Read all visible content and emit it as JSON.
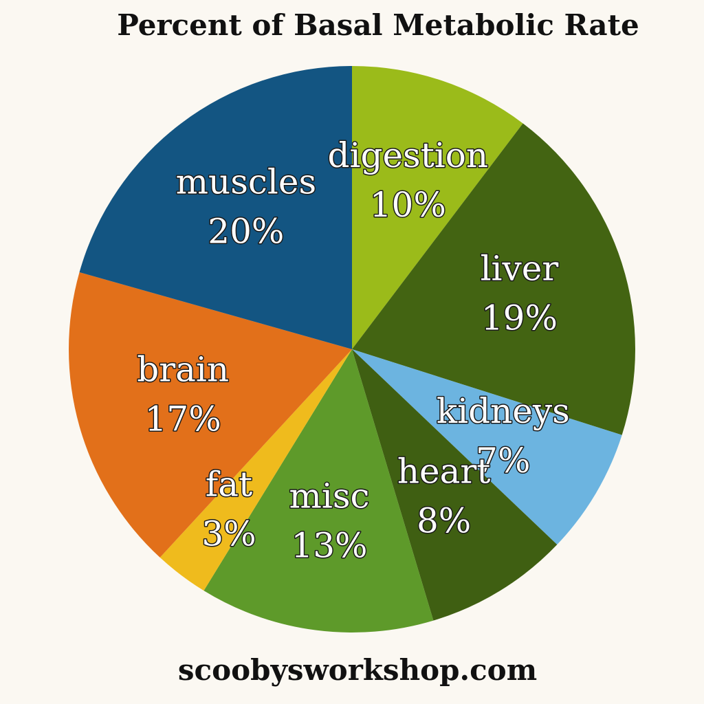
{
  "chart_data": {
    "type": "pie",
    "title": "Percent of Basal Metabolic Rate",
    "categories": [
      "digestion",
      "liver",
      "kidneys",
      "heart",
      "misc",
      "fat",
      "brain",
      "muscles"
    ],
    "values": [
      10,
      19,
      7,
      8,
      13,
      3,
      17,
      20
    ],
    "value_labels": [
      "10%",
      "19%",
      "7%",
      "8%",
      "13%",
      "3%",
      "17%",
      "20%"
    ],
    "colors": [
      "#9bbb1a",
      "#436412",
      "#6cb4e0",
      "#3f5f12",
      "#5e9a2a",
      "#efbb1d",
      "#e2701a",
      "#135582"
    ],
    "source": "scoobysworkshop.com"
  }
}
